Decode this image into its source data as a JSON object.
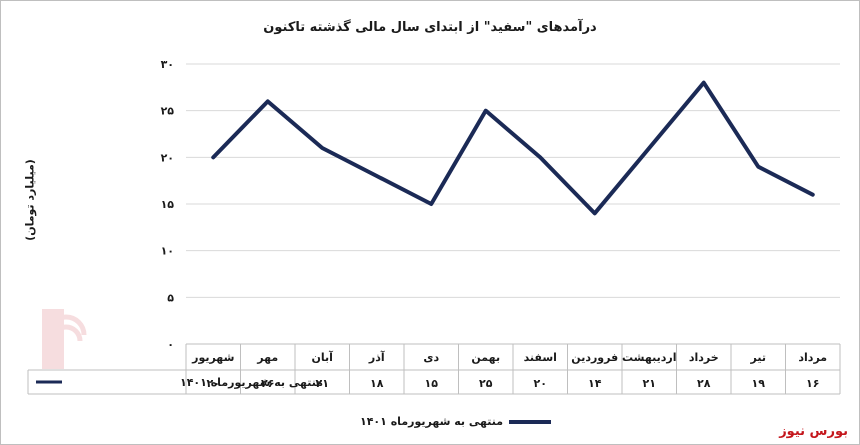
{
  "chart_data": {
    "type": "line",
    "title": "درآمدهای \"سفید\" از ابتدای سال مالی گذشته تاکنون",
    "ylabel": "(میلیارد تومان)",
    "ylim": [
      0,
      30
    ],
    "yticks": [
      "۰",
      "۵",
      "۱۰",
      "۱۵",
      "۲۰",
      "۲۵",
      "۳۰"
    ],
    "categories": [
      "شهریور",
      "مهر",
      "آبان",
      "آذر",
      "دی",
      "بهمن",
      "اسفند",
      "فروردین",
      "اردیبهشت",
      "خرداد",
      "تیر",
      "مرداد"
    ],
    "series": [
      {
        "name": "منتهی به شهریورماه ۱۴۰۱",
        "values": [
          20,
          26,
          21,
          18,
          15,
          25,
          20,
          14,
          21,
          28,
          19,
          16
        ],
        "labels": [
          "۲۰",
          "۲۶",
          "۲۱",
          "۱۸",
          "۱۵",
          "۲۵",
          "۲۰",
          "۱۴",
          "۲۱",
          "۲۸",
          "۱۹",
          "۱۶"
        ],
        "color": "#1b2a56"
      }
    ],
    "grid": true,
    "legend": "bottom"
  },
  "brand": "بورس نیوز",
  "watermark": "بورس نیوز"
}
